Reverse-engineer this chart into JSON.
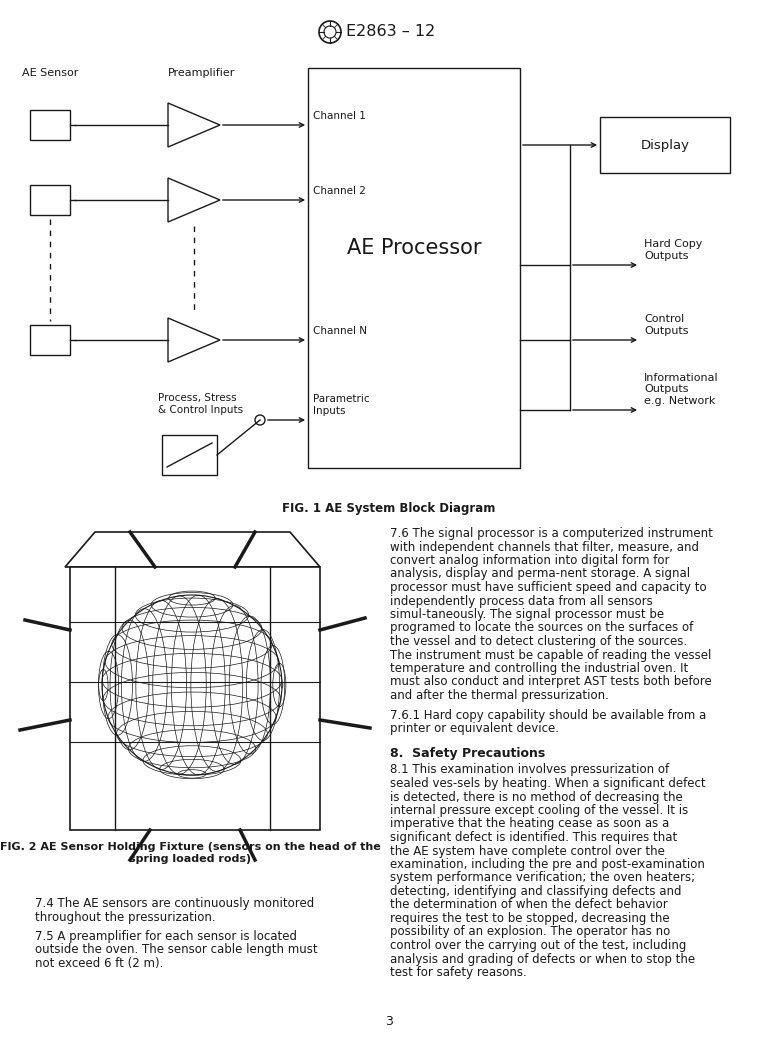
{
  "title": "E2863 – 12",
  "fig_caption_1": "FIG. 1 AE System Block Diagram",
  "fig_caption_2": "FIG. 2 AE Sensor Holding Fixture (sensors on the head of the\nspring loaded rods)",
  "page_number": "3",
  "background_color": "#ffffff",
  "text_color": "#1a1a1a",
  "section_8_title": "8.  Safety Precautions",
  "para_74": "    7.4  The AE sensors are continuously monitored throughout the pressurization.",
  "para_75": "    7.5  A preamplifier for each sensor is located outside the oven. The sensor cable length must not exceed 6 ft (2 m).",
  "para_76": "    7.6  The signal processor is a computerized instrument with independent channels that filter, measure, and convert analog information into digital form for analysis, display and perma-nent storage. A signal processor must have sufficient speed and capacity to independently process data from all sensors simul-taneously. The signal processor must be programed to locate the sources on the surfaces of the vessel and to detect clustering of the sources. The instrument must be capable of reading the vessel temperature and controlling the industrial oven. It must also conduct and interpret AST tests both before and after the thermal pressurization.",
  "para_761": "    7.6.1  Hard copy capability should be available from a printer or equivalent device.",
  "para_81": "    8.1  This examination involves pressurization of sealed ves-sels by heating. When a significant defect is detected, there is no method of decreasing the internal pressure except cooling of the vessel. It is imperative that the heating cease as soon as a significant defect is identified. This requires that the AE system have complete control over the examination, including the pre and post-examination system performance verification; the oven heaters; detecting, identifying and classifying defects and the determination of when the defect behavior requires the test to be stopped, decreasing the possibility of an explosion. The operator has no control over the carrying out of the test, including analysis and grading of defects or when to stop the test for safety reasons."
}
